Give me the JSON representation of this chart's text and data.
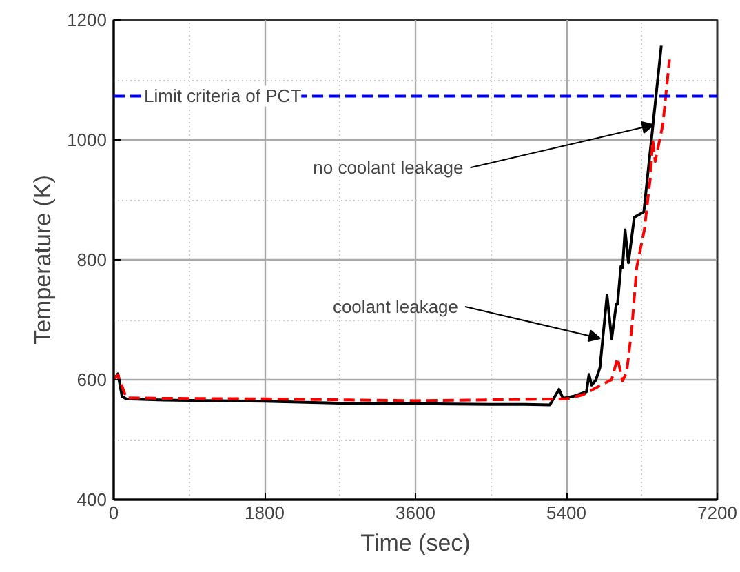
{
  "chart_data": {
    "type": "line",
    "xlabel": "Time (sec)",
    "ylabel": "Temperature (K)",
    "xlim": [
      0,
      7200
    ],
    "xticks": [
      0,
      1800,
      3600,
      5400,
      7200
    ],
    "ylim": [
      400,
      1200
    ],
    "yticks": [
      400,
      600,
      800,
      1000,
      1200
    ],
    "grid": true,
    "marker": "none",
    "series": [
      {
        "color": "#000000",
        "line_style": "solid",
        "x": [
          0,
          50,
          100,
          150,
          600,
          1800,
          2700,
          3600,
          4500,
          4876,
          5203,
          5312,
          5360,
          5500,
          5640,
          5670,
          5700,
          5750,
          5800,
          5885,
          5940,
          5995,
          6010,
          6050,
          6070,
          6100,
          6140,
          6210,
          6324,
          6433,
          6532
        ],
        "values": [
          600,
          610,
          572,
          568,
          566,
          564,
          561,
          560,
          559,
          559,
          558,
          584,
          569,
          573,
          580,
          609,
          591,
          599,
          620,
          741,
          668,
          726,
          726,
          789,
          787,
          850,
          795,
          871,
          880,
          1025,
          1157
        ]
      },
      {
        "color": "#ff0000",
        "line_style": "dashed",
        "x": [
          0,
          50,
          150,
          600,
          1800,
          3600,
          5400,
          5600,
          5800,
          5940,
          6010,
          6070,
          6120,
          6180,
          6240,
          6330,
          6400,
          6430,
          6460,
          6550,
          6630
        ],
        "values": [
          600,
          608,
          570,
          569,
          568,
          565,
          568,
          575,
          590,
          600,
          636,
          598,
          613,
          685,
          788,
          850,
          935,
          1000,
          964,
          1025,
          1134
        ]
      }
    ],
    "ref_lines": [
      {
        "axis": "y",
        "value": 1073,
        "label": "Limit criteria of PCT",
        "color": "#0000ff",
        "line_style": "dashed"
      }
    ],
    "annotations": [
      {
        "text": "no coolant leakage",
        "x": 6440,
        "y": 1025
      },
      {
        "text": "coolant leakage",
        "x": 5803,
        "y": 669
      }
    ]
  }
}
